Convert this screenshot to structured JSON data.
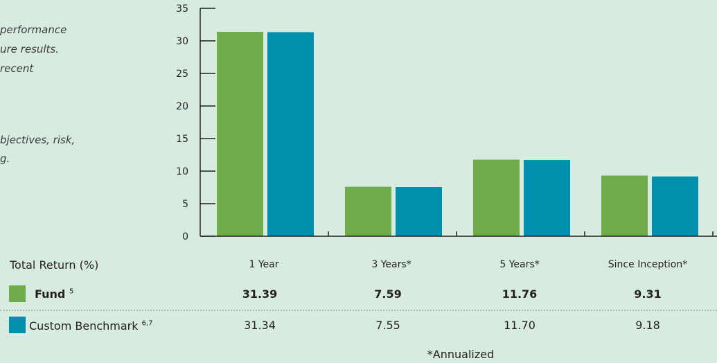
{
  "side_text": [
    "performance",
    "ure results.",
    "recent",
    "",
    "bjectives, risk,",
    "g."
  ],
  "colors": {
    "fund": "#70ab4b",
    "benchmark": "#0090ad",
    "background": "#d8ebe1"
  },
  "chart_data": {
    "type": "bar",
    "categories": [
      "1 Year",
      "3 Years*",
      "5 Years*",
      "Since Inception*"
    ],
    "series": [
      {
        "name": "Fund",
        "values": [
          31.39,
          7.59,
          11.76,
          9.31
        ]
      },
      {
        "name": "Custom Benchmark",
        "values": [
          31.34,
          7.55,
          11.7,
          9.18
        ]
      }
    ],
    "yticks": [
      0,
      5,
      10,
      15,
      20,
      25,
      30,
      35
    ],
    "ylim": [
      0,
      35
    ],
    "grid": false
  },
  "table": {
    "header_label": "Total Return (%)",
    "rows": [
      {
        "label": "Fund",
        "superscript": "5",
        "values": [
          "31.39",
          "7.59",
          "11.76",
          "9.31"
        ]
      },
      {
        "label": "Custom Benchmark",
        "superscript": "6,7",
        "values": [
          "31.34",
          "7.55",
          "11.70",
          "9.18"
        ]
      }
    ],
    "footnote": "*Annualized"
  }
}
